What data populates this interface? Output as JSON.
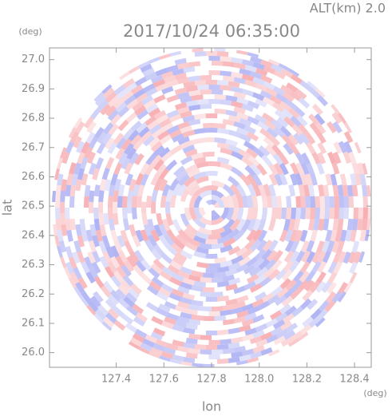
{
  "chart_data": {
    "type": "radar-ppi",
    "title": "2017/10/24 06:35:00",
    "subtitle": "ALT(km) 2.0",
    "x_label": "lon",
    "y_label": "lat",
    "x_unit": "(deg)",
    "y_unit": "(deg)",
    "xlim": [
      127.12,
      128.47
    ],
    "ylim": [
      25.95,
      27.04
    ],
    "xticks": [
      127.4,
      127.6,
      127.8,
      {
        "value": 128,
        "label": "128.0"
      },
      128.2,
      128.4
    ],
    "yticks": [
      {
        "value": 26,
        "label": "26.0"
      },
      26.1,
      26.2,
      26.3,
      26.4,
      26.5,
      26.6,
      26.7,
      26.8,
      26.9,
      {
        "value": 27,
        "label": "27.0"
      }
    ]
  }
}
